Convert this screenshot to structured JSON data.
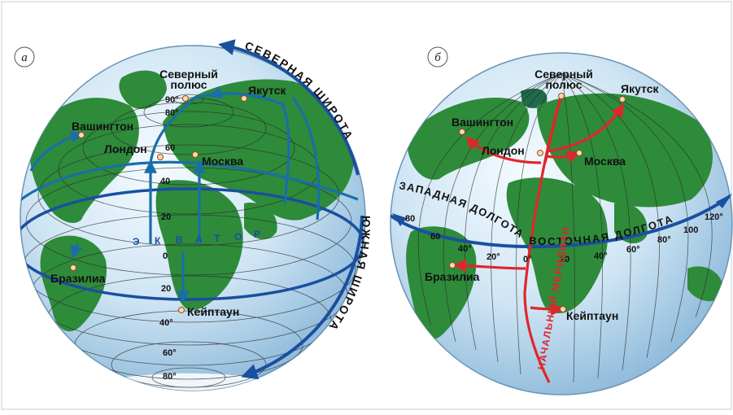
{
  "panel_a": {
    "letter": "а",
    "cities": {
      "north_pole": [
        "Северный",
        "полюс"
      ],
      "yakutsk": "Якутск",
      "washington": "Вашингтон",
      "london": "Лондон",
      "moscow": "Москва",
      "brasilia": "Бразилиа",
      "capetown": "Кейптаун"
    },
    "lat_labels": {
      "l90": "90°",
      "l80": "80°",
      "l60": "60",
      "l40": "40",
      "l20": "20",
      "l0": "0",
      "s20": "20",
      "s40": "40°",
      "s60": "60°",
      "s80": "80°"
    },
    "equator_letters": [
      "Э",
      "К",
      "В",
      "А",
      "Т",
      "О",
      "Р"
    ],
    "north_latitude": "СЕВЕРНАЯ ШИРОТА",
    "south_latitude": "ЮЖНАЯ ШИРОТА"
  },
  "panel_b": {
    "letter": "б",
    "cities": {
      "north_pole": [
        "Северный",
        "полюс"
      ],
      "yakutsk": "Якутск",
      "washington": "Вашингтон",
      "london": "Лондон",
      "moscow": "Москва",
      "brasilia": "Бразилиа",
      "capetown": "Кейптаун"
    },
    "lon_labels": [
      "80",
      "60",
      "40°",
      "20°",
      "0°",
      "20",
      "40°",
      "60°",
      "80°",
      "100",
      "120°"
    ],
    "west_longitude": "ЗАПАДНАЯ ДОЛГОТА",
    "east_longitude": "ВОСТОЧНАЯ ДОЛГОТА",
    "prime_meridian": "НАЧАЛЬНЫЙ МЕРИДИАН"
  },
  "colors": {
    "ocean": "#d4e8f5",
    "land": "#2e8b3a",
    "lat_arrow": "#1a6ea8",
    "equator": "#1a4fa0",
    "lon_arrow": "#e0262b"
  }
}
